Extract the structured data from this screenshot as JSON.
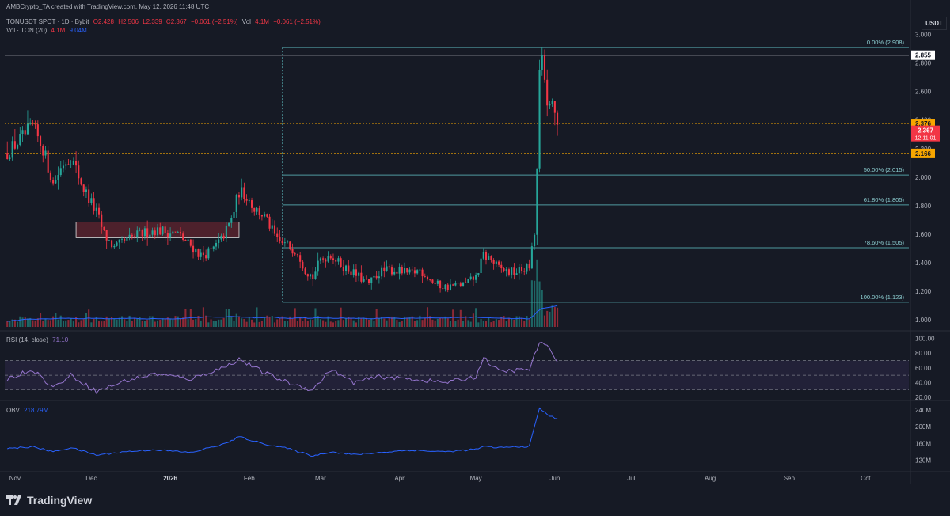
{
  "header": {
    "title": "AMBCrypto_TA created with TradingView.com, May 12, 2026 11:48 UTC"
  },
  "currency_badge": "USDT",
  "legend": {
    "symbol": "TONUSDT SPOT · 1D · Bybit",
    "open": "O2.428",
    "high": "H2.506",
    "low": "L2.339",
    "close": "C2.367",
    "change": "−0.061 (−2.51%)",
    "vol_label": "Vol",
    "vol_value": "4.1M",
    "change2": "−0.061 (−2.51%)",
    "vol_series": "Vol · TON (20)",
    "vol_series_value": "4.1M",
    "vol_ma_value": "9.04M",
    "rsi_label": "RSI (14, close)",
    "rsi_value": "71.10",
    "obv_label": "OBV",
    "obv_value": "218.79M"
  },
  "colors": {
    "bg": "#161a25",
    "up": "#26a69a",
    "down": "#f23645",
    "fib": "#4f9aa0",
    "level_orange": "#f7a600",
    "rsi": "#9575cd",
    "obv": "#2962ff"
  },
  "tradingview_brand": "TradingView",
  "chart_data": [
    {
      "type": "candlestick",
      "pane": "price",
      "ylim": [
        0.95,
        3.02
      ],
      "y_ticks": [
        "1.000",
        "1.200",
        "1.400",
        "1.600",
        "1.800",
        "2.000",
        "2.200",
        "2.400",
        "2.600",
        "2.800",
        "3.000"
      ],
      "x_ticks": [
        "Nov",
        "Dec",
        "2026",
        "Feb",
        "Mar",
        "Apr",
        "May",
        "Jun",
        "Jul",
        "Aug",
        "Sep",
        "Oct"
      ],
      "x_tick_days": [
        -7,
        23,
        54,
        85,
        113,
        144,
        174,
        205,
        235,
        266,
        297,
        327
      ],
      "x_range_days": [
        -11,
        344
      ],
      "anchors": [
        {
          "day": -10,
          "price": 2.17
        },
        {
          "day": -3,
          "price": 2.3
        },
        {
          "day": 0,
          "price": 2.35
        },
        {
          "day": 4,
          "price": 2.2
        },
        {
          "day": 8,
          "price": 1.95
        },
        {
          "day": 12,
          "price": 2.1
        },
        {
          "day": 15,
          "price": 2.14
        },
        {
          "day": 20,
          "price": 1.92
        },
        {
          "day": 25,
          "price": 1.75
        },
        {
          "day": 28,
          "price": 1.6
        },
        {
          "day": 32,
          "price": 1.5
        },
        {
          "day": 36,
          "price": 1.55
        },
        {
          "day": 42,
          "price": 1.6
        },
        {
          "day": 48,
          "price": 1.63
        },
        {
          "day": 52,
          "price": 1.62
        },
        {
          "day": 57,
          "price": 1.6
        },
        {
          "day": 62,
          "price": 1.52
        },
        {
          "day": 66,
          "price": 1.45
        },
        {
          "day": 70,
          "price": 1.48
        },
        {
          "day": 74,
          "price": 1.56
        },
        {
          "day": 78,
          "price": 1.7
        },
        {
          "day": 81,
          "price": 1.9
        },
        {
          "day": 84,
          "price": 1.87
        },
        {
          "day": 87,
          "price": 1.78
        },
        {
          "day": 90,
          "price": 1.74
        },
        {
          "day": 93,
          "price": 1.66
        },
        {
          "day": 96,
          "price": 1.55
        },
        {
          "day": 100,
          "price": 1.52
        },
        {
          "day": 104,
          "price": 1.48
        },
        {
          "day": 107,
          "price": 1.35
        },
        {
          "day": 110,
          "price": 1.3
        },
        {
          "day": 113,
          "price": 1.42
        },
        {
          "day": 117,
          "price": 1.46
        },
        {
          "day": 120,
          "price": 1.4
        },
        {
          "day": 124,
          "price": 1.35
        },
        {
          "day": 128,
          "price": 1.3
        },
        {
          "day": 132,
          "price": 1.25
        },
        {
          "day": 136,
          "price": 1.33
        },
        {
          "day": 140,
          "price": 1.35
        },
        {
          "day": 144,
          "price": 1.34
        },
        {
          "day": 148,
          "price": 1.32
        },
        {
          "day": 152,
          "price": 1.35
        },
        {
          "day": 155,
          "price": 1.3
        },
        {
          "day": 158,
          "price": 1.25
        },
        {
          "day": 162,
          "price": 1.23
        },
        {
          "day": 166,
          "price": 1.24
        },
        {
          "day": 170,
          "price": 1.25
        },
        {
          "day": 174,
          "price": 1.3
        },
        {
          "day": 177,
          "price": 1.45
        },
        {
          "day": 180,
          "price": 1.42
        },
        {
          "day": 183,
          "price": 1.36
        },
        {
          "day": 186,
          "price": 1.34
        },
        {
          "day": 189,
          "price": 1.33
        },
        {
          "day": 192,
          "price": 1.35
        },
        {
          "day": 195,
          "price": 1.37
        },
        {
          "day": 197,
          "price": 1.6
        },
        {
          "day": 198,
          "price": 2.05
        },
        {
          "day": 199,
          "price": 2.7
        },
        {
          "day": 200,
          "price": 2.8
        },
        {
          "day": 201,
          "price": 2.68
        },
        {
          "day": 202,
          "price": 2.55
        },
        {
          "day": 203,
          "price": 2.45
        },
        {
          "day": 204,
          "price": 2.52
        },
        {
          "day": 205,
          "price": 2.43
        },
        {
          "day": 206,
          "price": 2.367
        }
      ],
      "fibonacci": [
        {
          "label": "0.00% (2.908)",
          "price": 2.908
        },
        {
          "label": "50.00% (2.015)",
          "price": 2.015
        },
        {
          "label": "61.80% (1.805)",
          "price": 1.805
        },
        {
          "label": "78.60% (1.505)",
          "price": 1.505
        },
        {
          "label": "100.00% (1.123)",
          "price": 1.123
        }
      ],
      "fib_start_day": 98,
      "horizontal_lines": [
        {
          "price": 2.855,
          "style": "solid",
          "color": "#d1d4dc",
          "badge": "2.855"
        },
        {
          "price": 2.376,
          "style": "dotted",
          "color": "#f7a600",
          "badge": "2.376"
        },
        {
          "price": 2.166,
          "style": "dotted",
          "color": "#f7a600",
          "badge": "2.166"
        }
      ],
      "last_price_badge": "2.367",
      "countdown_badge": "12:11:01",
      "zone": {
        "start_day": 17,
        "end_day": 81,
        "top": 1.685,
        "bottom": 1.575
      }
    },
    {
      "type": "bar",
      "pane": "volume",
      "series_name": "Vol · TON (20)"
    },
    {
      "type": "line",
      "pane": "rsi",
      "series_name": "RSI (14, close)",
      "ylim": [
        20,
        105
      ],
      "y_ticks": [
        "100.00",
        "80.00",
        "60.00",
        "40.00",
        "20.00"
      ],
      "bands": [
        30,
        50,
        70
      ],
      "anchors": [
        {
          "day": -10,
          "rsi": 45
        },
        {
          "day": 0,
          "rsi": 58
        },
        {
          "day": 8,
          "rsi": 33
        },
        {
          "day": 15,
          "rsi": 50
        },
        {
          "day": 25,
          "rsi": 28
        },
        {
          "day": 36,
          "rsi": 42
        },
        {
          "day": 48,
          "rsi": 52
        },
        {
          "day": 62,
          "rsi": 45
        },
        {
          "day": 76,
          "rsi": 62
        },
        {
          "day": 81,
          "rsi": 72
        },
        {
          "day": 90,
          "rsi": 55
        },
        {
          "day": 100,
          "rsi": 40
        },
        {
          "day": 110,
          "rsi": 30
        },
        {
          "day": 117,
          "rsi": 58
        },
        {
          "day": 126,
          "rsi": 40
        },
        {
          "day": 136,
          "rsi": 48
        },
        {
          "day": 148,
          "rsi": 45
        },
        {
          "day": 162,
          "rsi": 40
        },
        {
          "day": 174,
          "rsi": 48
        },
        {
          "day": 177,
          "rsi": 74
        },
        {
          "day": 183,
          "rsi": 55
        },
        {
          "day": 195,
          "rsi": 58
        },
        {
          "day": 199,
          "rsi": 95
        },
        {
          "day": 202,
          "rsi": 88
        },
        {
          "day": 206,
          "rsi": 71.1
        }
      ]
    },
    {
      "type": "line",
      "pane": "obv",
      "series_name": "OBV",
      "ylim": [
        100,
        255
      ],
      "y_ticks": [
        "240M",
        "200M",
        "160M",
        "120M"
      ],
      "anchors": [
        {
          "day": -10,
          "obv": 148
        },
        {
          "day": 0,
          "obv": 152
        },
        {
          "day": 8,
          "obv": 140
        },
        {
          "day": 15,
          "obv": 150
        },
        {
          "day": 25,
          "obv": 132
        },
        {
          "day": 36,
          "obv": 140
        },
        {
          "day": 48,
          "obv": 145
        },
        {
          "day": 62,
          "obv": 138
        },
        {
          "day": 76,
          "obv": 160
        },
        {
          "day": 81,
          "obv": 176
        },
        {
          "day": 90,
          "obv": 160
        },
        {
          "day": 100,
          "obv": 148
        },
        {
          "day": 110,
          "obv": 130
        },
        {
          "day": 117,
          "obv": 140
        },
        {
          "day": 126,
          "obv": 133
        },
        {
          "day": 136,
          "obv": 138
        },
        {
          "day": 148,
          "obv": 144
        },
        {
          "day": 162,
          "obv": 140
        },
        {
          "day": 174,
          "obv": 146
        },
        {
          "day": 177,
          "obv": 152
        },
        {
          "day": 183,
          "obv": 150
        },
        {
          "day": 195,
          "obv": 153
        },
        {
          "day": 199,
          "obv": 245
        },
        {
          "day": 202,
          "obv": 228
        },
        {
          "day": 206,
          "obv": 218.79
        }
      ]
    }
  ]
}
